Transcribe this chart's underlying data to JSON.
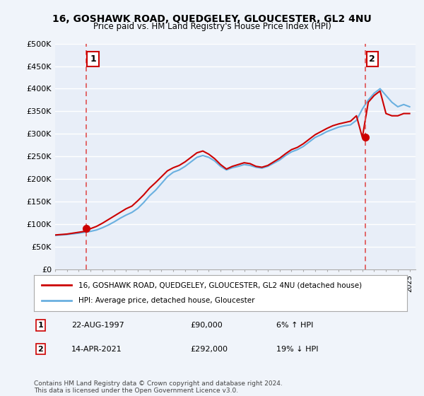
{
  "title": "16, GOSHAWK ROAD, QUEDGELEY, GLOUCESTER, GL2 4NU",
  "subtitle": "Price paid vs. HM Land Registry's House Price Index (HPI)",
  "legend_line1": "16, GOSHAWK ROAD, QUEDGELEY, GLOUCESTER, GL2 4NU (detached house)",
  "legend_line2": "HPI: Average price, detached house, Gloucester",
  "annotation1_label": "1",
  "annotation1_date": "22-AUG-1997",
  "annotation1_price": "£90,000",
  "annotation1_hpi": "6% ↑ HPI",
  "annotation2_label": "2",
  "annotation2_date": "14-APR-2021",
  "annotation2_price": "£292,000",
  "annotation2_hpi": "19% ↓ HPI",
  "footer": "Contains HM Land Registry data © Crown copyright and database right 2024.\nThis data is licensed under the Open Government Licence v3.0.",
  "ylabel": "",
  "xlabel": "",
  "background_color": "#f0f4fa",
  "plot_bg_color": "#e8eef8",
  "grid_color": "#ffffff",
  "hpi_color": "#6ab0e0",
  "price_color": "#cc0000",
  "dashed_line_color": "#e05050",
  "marker_color": "#cc0000",
  "ylim": [
    0,
    500000
  ],
  "yticks": [
    0,
    50000,
    100000,
    150000,
    200000,
    250000,
    300000,
    350000,
    400000,
    450000,
    500000
  ],
  "ytick_labels": [
    "£0",
    "£50K",
    "£100K",
    "£150K",
    "£200K",
    "£250K",
    "£300K",
    "£350K",
    "£400K",
    "£450K",
    "£500K"
  ],
  "sale1_year": 1997.64,
  "sale1_price": 90000,
  "sale2_year": 2021.28,
  "sale2_price": 292000,
  "hpi_years": [
    1995,
    1995.5,
    1996,
    1996.5,
    1997,
    1997.5,
    1998,
    1998.5,
    1999,
    1999.5,
    2000,
    2000.5,
    2001,
    2001.5,
    2002,
    2002.5,
    2003,
    2003.5,
    2004,
    2004.5,
    2005,
    2005.5,
    2006,
    2006.5,
    2007,
    2007.5,
    2008,
    2008.5,
    2009,
    2009.5,
    2010,
    2010.5,
    2011,
    2011.5,
    2012,
    2012.5,
    2013,
    2013.5,
    2014,
    2014.5,
    2015,
    2015.5,
    2016,
    2016.5,
    2017,
    2017.5,
    2018,
    2018.5,
    2019,
    2019.5,
    2020,
    2020.5,
    2021,
    2021.5,
    2022,
    2022.5,
    2023,
    2023.5,
    2024,
    2024.5,
    2025
  ],
  "hpi_values": [
    75000,
    76000,
    77000,
    78500,
    80000,
    82000,
    84000,
    87000,
    92000,
    98000,
    105000,
    113000,
    120000,
    126000,
    135000,
    148000,
    163000,
    175000,
    190000,
    205000,
    215000,
    220000,
    228000,
    238000,
    248000,
    252000,
    248000,
    240000,
    228000,
    220000,
    225000,
    228000,
    232000,
    230000,
    226000,
    224000,
    228000,
    235000,
    242000,
    252000,
    260000,
    265000,
    272000,
    282000,
    292000,
    298000,
    305000,
    310000,
    315000,
    318000,
    320000,
    330000,
    355000,
    375000,
    390000,
    400000,
    385000,
    370000,
    360000,
    365000,
    360000
  ],
  "price_years": [
    1995,
    1995.5,
    1996,
    1996.5,
    1997,
    1997.5,
    1998,
    1998.5,
    1999,
    1999.5,
    2000,
    2000.5,
    2001,
    2001.5,
    2002,
    2002.5,
    2003,
    2003.5,
    2004,
    2004.5,
    2005,
    2005.5,
    2006,
    2006.5,
    2007,
    2007.5,
    2008,
    2008.5,
    2009,
    2009.5,
    2010,
    2010.5,
    2011,
    2011.5,
    2012,
    2012.5,
    2013,
    2013.5,
    2014,
    2014.5,
    2015,
    2015.5,
    2016,
    2016.5,
    2017,
    2017.5,
    2018,
    2018.5,
    2019,
    2019.5,
    2020,
    2020.5,
    2021,
    2021.5,
    2022,
    2022.5,
    2023,
    2023.5,
    2024,
    2024.5,
    2025
  ],
  "price_values": [
    76000,
    77000,
    78000,
    80000,
    82000,
    84000,
    90000,
    95000,
    102000,
    110000,
    118000,
    126000,
    134000,
    140000,
    152000,
    165000,
    180000,
    192000,
    205000,
    218000,
    225000,
    230000,
    238000,
    248000,
    258000,
    262000,
    255000,
    245000,
    232000,
    222000,
    228000,
    232000,
    236000,
    234000,
    228000,
    226000,
    230000,
    238000,
    246000,
    256000,
    265000,
    270000,
    278000,
    288000,
    298000,
    305000,
    312000,
    318000,
    322000,
    325000,
    328000,
    340000,
    292000,
    370000,
    385000,
    395000,
    345000,
    340000,
    340000,
    345000,
    345000
  ],
  "xlim": [
    1995,
    2025.5
  ],
  "xticks": [
    1995,
    1996,
    1997,
    1998,
    1999,
    2000,
    2001,
    2002,
    2003,
    2004,
    2005,
    2006,
    2007,
    2008,
    2009,
    2010,
    2011,
    2012,
    2013,
    2014,
    2015,
    2016,
    2017,
    2018,
    2019,
    2020,
    2021,
    2022,
    2023,
    2024,
    2025
  ]
}
